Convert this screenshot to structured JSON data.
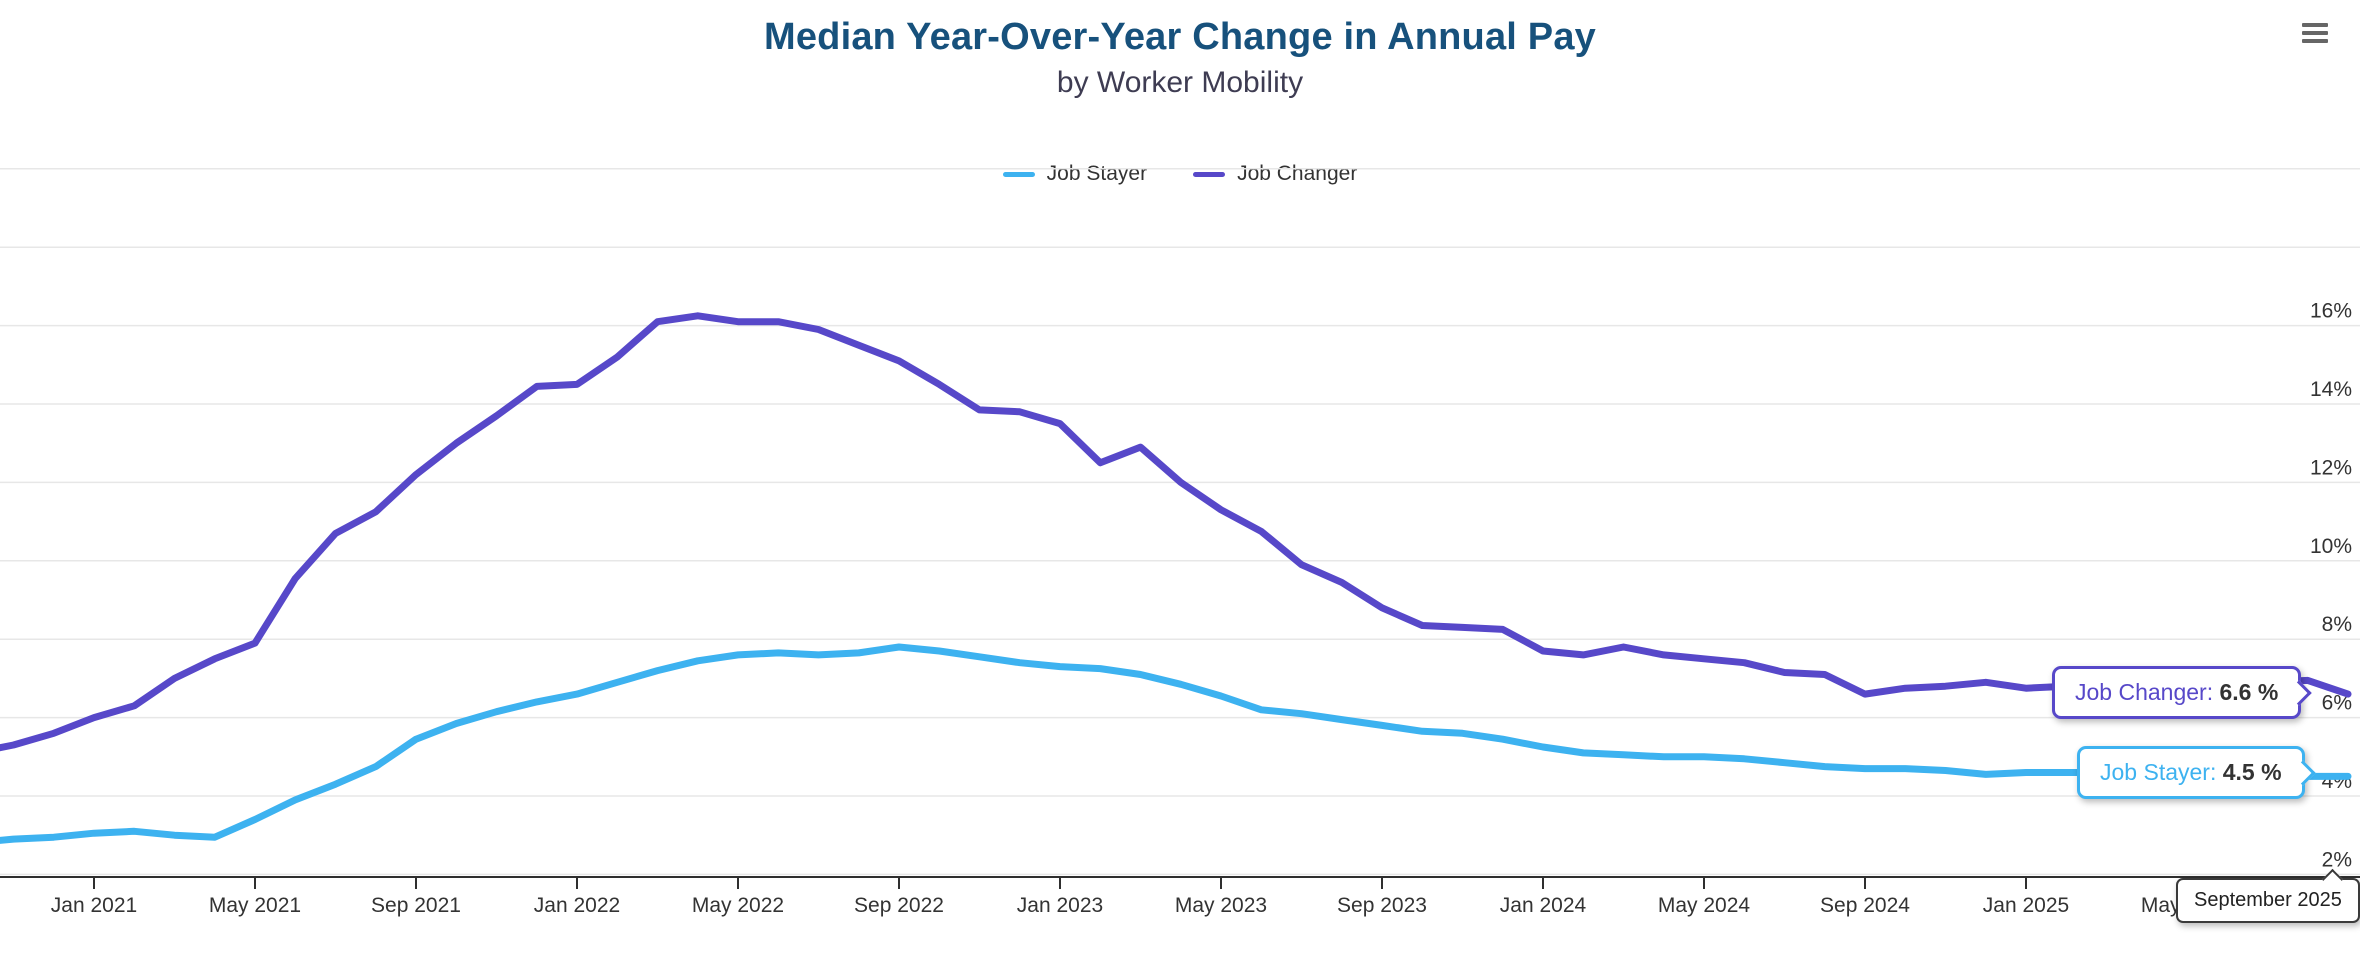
{
  "header": {
    "title": "Median Year-Over-Year Change in Annual Pay",
    "subtitle": "by Worker Mobility"
  },
  "menu": {
    "icon": "hamburger-menu-icon"
  },
  "legend": {
    "items": [
      {
        "label": "Job Stayer",
        "color": "#3DB2F0"
      },
      {
        "label": "Job Changer",
        "color": "#5748C9"
      }
    ]
  },
  "colors": {
    "title": "#17517C",
    "subtitle": "#3E3C52",
    "axis_text": "#333333",
    "gridline": "#E7E7E7",
    "axis_line": "#2F2F2F",
    "stayer": "#3DB2F0",
    "changer": "#5748C9"
  },
  "chart_data": {
    "type": "line",
    "title": "Median Year-Over-Year Change in Annual Pay",
    "subtitle": "by Worker Mobility",
    "xlabel": "",
    "ylabel": "",
    "y_unit": "%",
    "ylim": [
      1.9,
      20.1
    ],
    "grid": true,
    "legend_position": "top-center",
    "x": [
      "Oct 2020",
      "Nov 2020",
      "Dec 2020",
      "Jan 2021",
      "Feb 2021",
      "Mar 2021",
      "Apr 2021",
      "May 2021",
      "Jun 2021",
      "Jul 2021",
      "Aug 2021",
      "Sep 2021",
      "Oct 2021",
      "Nov 2021",
      "Dec 2021",
      "Jan 2022",
      "Feb 2022",
      "Mar 2022",
      "Apr 2022",
      "May 2022",
      "Jun 2022",
      "Jul 2022",
      "Aug 2022",
      "Sep 2022",
      "Oct 2022",
      "Nov 2022",
      "Dec 2022",
      "Jan 2023",
      "Feb 2023",
      "Mar 2023",
      "Apr 2023",
      "May 2023",
      "Jun 2023",
      "Jul 2023",
      "Aug 2023",
      "Sep 2023",
      "Oct 2023",
      "Nov 2023",
      "Dec 2023",
      "Jan 2024",
      "Feb 2024",
      "Mar 2024",
      "Apr 2024",
      "May 2024",
      "Jun 2024",
      "Jul 2024",
      "Aug 2024",
      "Sep 2024",
      "Oct 2024",
      "Nov 2024",
      "Dec 2024",
      "Jan 2025",
      "Feb 2025",
      "Mar 2025",
      "Apr 2025",
      "May 2025",
      "Jun 2025",
      "Jul 2025",
      "Aug 2025",
      "Sep 2025"
    ],
    "series": [
      {
        "name": "Job Stayer",
        "color": "#3DB2F0",
        "values": [
          2.8,
          2.9,
          2.95,
          3.05,
          3.1,
          3.0,
          2.95,
          3.4,
          3.9,
          4.3,
          4.75,
          5.45,
          5.85,
          6.15,
          6.4,
          6.6,
          6.9,
          7.2,
          7.45,
          7.6,
          7.65,
          7.6,
          7.65,
          7.8,
          7.7,
          7.55,
          7.4,
          7.3,
          7.25,
          7.1,
          6.85,
          6.55,
          6.2,
          6.1,
          5.95,
          5.8,
          5.65,
          5.6,
          5.45,
          5.25,
          5.1,
          5.05,
          5.0,
          5.0,
          4.95,
          4.85,
          4.75,
          4.7,
          4.7,
          4.65,
          4.55,
          4.6,
          4.6,
          4.6,
          4.55,
          4.55,
          4.55,
          4.5,
          4.5,
          4.5
        ]
      },
      {
        "name": "Job Changer",
        "color": "#5748C9",
        "values": [
          5.1,
          5.3,
          5.6,
          6.0,
          6.3,
          7.0,
          7.5,
          7.9,
          9.55,
          10.7,
          11.25,
          12.2,
          13.0,
          13.7,
          14.45,
          14.5,
          15.2,
          16.1,
          16.25,
          16.1,
          16.1,
          15.9,
          15.5,
          15.1,
          14.5,
          13.85,
          13.8,
          13.5,
          12.5,
          12.9,
          12.0,
          11.3,
          10.75,
          9.9,
          9.45,
          8.8,
          8.35,
          8.3,
          8.25,
          7.7,
          7.6,
          7.8,
          7.6,
          7.5,
          7.4,
          7.15,
          7.1,
          6.6,
          6.75,
          6.8,
          6.9,
          6.75,
          6.8,
          6.85,
          6.85,
          6.9,
          6.85,
          6.9,
          6.95,
          6.6
        ]
      }
    ],
    "yticks": [
      2,
      4,
      6,
      8,
      10,
      12,
      14,
      16,
      18,
      20
    ],
    "ytick_label_max": 16,
    "ytick_suffix": "%",
    "xticks": [
      {
        "i": 3,
        "label": "Jan 2021"
      },
      {
        "i": 7,
        "label": "May 2021"
      },
      {
        "i": 11,
        "label": "Sep 2021"
      },
      {
        "i": 15,
        "label": "Jan 2022"
      },
      {
        "i": 19,
        "label": "May 2022"
      },
      {
        "i": 23,
        "label": "Sep 2022"
      },
      {
        "i": 27,
        "label": "Jan 2023"
      },
      {
        "i": 31,
        "label": "May 2023"
      },
      {
        "i": 35,
        "label": "Sep 2023"
      },
      {
        "i": 39,
        "label": "Jan 2024"
      },
      {
        "i": 43,
        "label": "May 2024"
      },
      {
        "i": 47,
        "label": "Sep 2024"
      },
      {
        "i": 51,
        "label": "Jan 2025"
      },
      {
        "i": 55,
        "label": "May 2025"
      },
      {
        "i": 59,
        "label": ""
      }
    ]
  },
  "tooltips": {
    "changer": {
      "label": "Job Changer",
      "separator": ": ",
      "value": "6.6 %"
    },
    "stayer": {
      "label": "Job Stayer",
      "separator": ": ",
      "value": "4.5 %"
    },
    "xaxis": {
      "text": "September 2025"
    }
  }
}
